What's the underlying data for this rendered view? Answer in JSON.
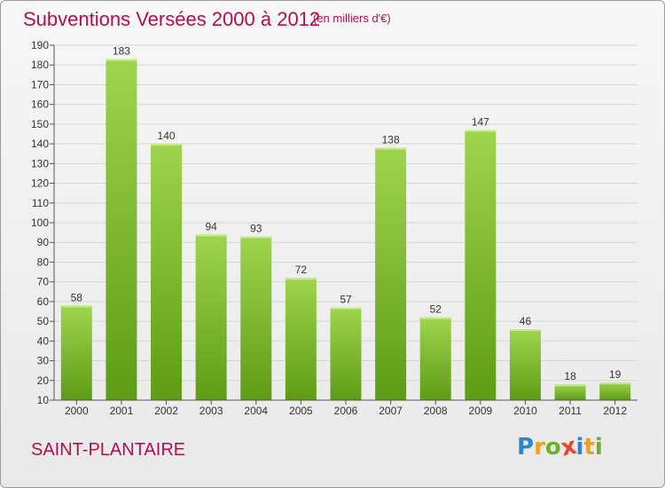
{
  "title": "Subventions Versées 2000 à 2012",
  "unit_note": "(en milliers d'€)",
  "commune": "SAINT-PLANTAIRE",
  "logo": {
    "letters": [
      "P",
      "r",
      "o",
      "x",
      "i",
      "t",
      "i"
    ],
    "colors": [
      "#2e86c8",
      "#f0a020",
      "#6cb02c",
      "#e8452c",
      "#2e86c8",
      "#f0a020",
      "#6cb02c"
    ]
  },
  "colors": {
    "title": "#b0104f",
    "bar_top": "#9fd44e",
    "bar_bottom": "#5e9c16",
    "grid": "#d6d6d6"
  },
  "chart_data": {
    "type": "bar",
    "title": "Subventions Versées 2000 à 2012",
    "categories": [
      "2000",
      "2001",
      "2002",
      "2003",
      "2004",
      "2005",
      "2006",
      "2007",
      "2008",
      "2009",
      "2010",
      "2011",
      "2012"
    ],
    "values": [
      58,
      183,
      140,
      94,
      93,
      72,
      57,
      138,
      52,
      147,
      46,
      18,
      19
    ],
    "ylim": [
      10,
      190
    ],
    "yticks": [
      10,
      20,
      30,
      40,
      50,
      60,
      70,
      80,
      90,
      100,
      110,
      120,
      130,
      140,
      150,
      160,
      170,
      180,
      190
    ],
    "grid": true,
    "xlabel": "",
    "ylabel": ""
  }
}
